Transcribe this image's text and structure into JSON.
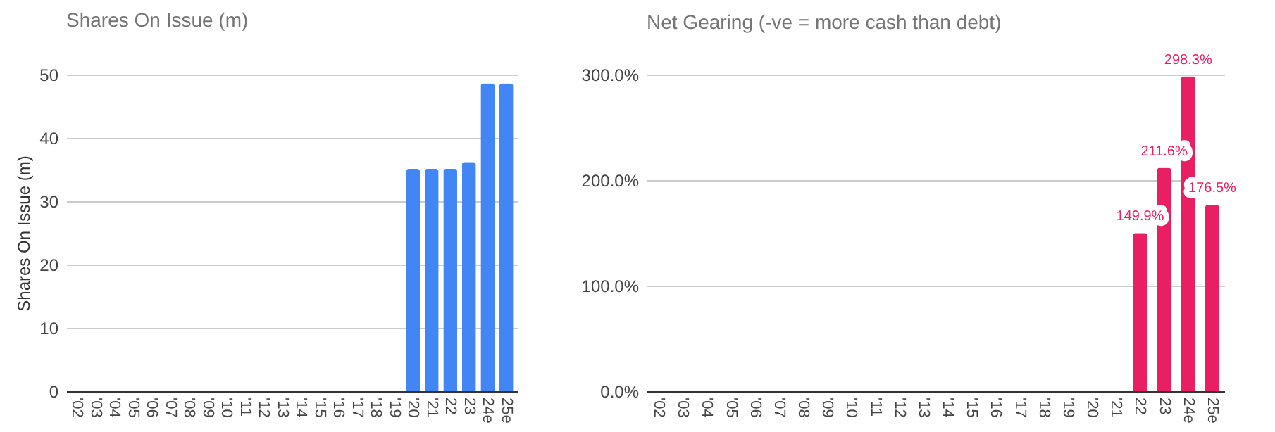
{
  "chart_data": [
    {
      "type": "bar",
      "title": "Shares On Issue (m)",
      "ylabel": "Shares On Issue (m)",
      "categories": [
        "'02",
        "'03",
        "'04",
        "'05",
        "'06",
        "'07",
        "'08",
        "'09",
        "'10",
        "'11",
        "'12",
        "'13",
        "'14",
        "'15",
        "'16",
        "'17",
        "'18",
        "'19",
        "'20",
        "'21",
        "22",
        "23",
        "24e",
        "25e"
      ],
      "values": [
        null,
        null,
        null,
        null,
        null,
        null,
        null,
        null,
        null,
        null,
        null,
        null,
        null,
        null,
        null,
        null,
        null,
        null,
        35.1,
        35.1,
        35.1,
        36.2,
        48.6,
        48.6
      ],
      "color": "#4285f4",
      "ylim": [
        0,
        50
      ],
      "yticks": [
        0,
        10,
        20,
        30,
        40,
        50
      ],
      "grid": "y"
    },
    {
      "type": "bar",
      "title": "Net Gearing (-ve = more cash than debt)",
      "categories": [
        "'02",
        "'03",
        "'04",
        "'05",
        "'06",
        "'07",
        "'08",
        "'09",
        "'10",
        "'11",
        "'12",
        "'13",
        "'14",
        "'15",
        "'16",
        "'17",
        "'18",
        "'19",
        "'20",
        "'21",
        "22",
        "23",
        "24e",
        "25e"
      ],
      "values": [
        null,
        null,
        null,
        null,
        null,
        null,
        null,
        null,
        null,
        null,
        null,
        null,
        null,
        null,
        null,
        null,
        null,
        null,
        null,
        null,
        149.9,
        211.6,
        298.3,
        176.5
      ],
      "value_labels": [
        null,
        null,
        null,
        null,
        null,
        null,
        null,
        null,
        null,
        null,
        null,
        null,
        null,
        null,
        null,
        null,
        null,
        null,
        null,
        null,
        "149.9%",
        "211.6%",
        "298.3%",
        "176.5%"
      ],
      "color": "#e91e63",
      "ylim": [
        0,
        300
      ],
      "yticks": [
        {
          "value": 0,
          "label": "0.0%"
        },
        {
          "value": 100,
          "label": "100.0%"
        },
        {
          "value": 200,
          "label": "200.0%"
        },
        {
          "value": 300,
          "label": "300.0%"
        }
      ],
      "grid": "y"
    }
  ]
}
